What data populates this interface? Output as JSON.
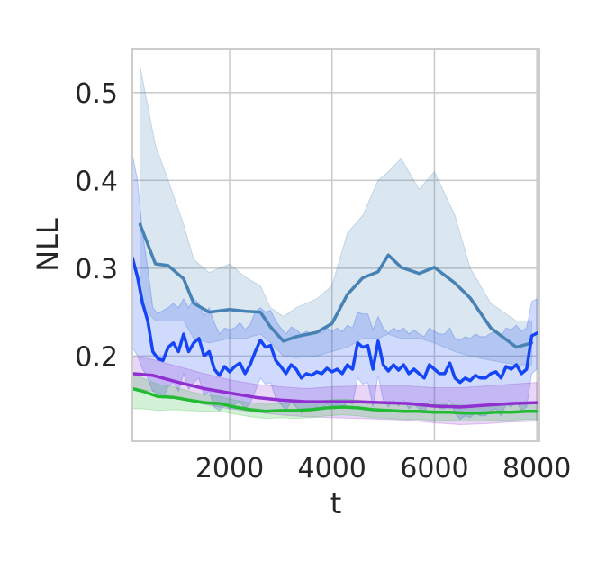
{
  "chart_data": {
    "type": "line",
    "title": "",
    "xlabel": "t",
    "ylabel": "NLL",
    "xlim": [
      100,
      8050
    ],
    "ylim": [
      0.103,
      0.55
    ],
    "xticks": [
      2000,
      4000,
      6000,
      8000
    ],
    "xtick_labels": [
      "2000",
      "4000",
      "6000",
      "8000"
    ],
    "yticks": [
      0.2,
      0.3,
      0.4,
      0.5
    ],
    "ytick_labels": [
      "0.2",
      "0.3",
      "0.4",
      "0.5"
    ],
    "grid": true,
    "legend": "none",
    "series": [
      {
        "color": "#4682b4",
        "x": [
          250,
          550,
          800,
          1100,
          1300,
          1600,
          2000,
          2300,
          2600,
          2800,
          3050,
          3300,
          3700,
          4000,
          4300,
          4600,
          4900,
          5100,
          5350,
          5700,
          6000,
          6400,
          6700,
          7100,
          7600,
          7900
        ],
        "y": [
          0.35,
          0.305,
          0.303,
          0.288,
          0.26,
          0.25,
          0.253,
          0.251,
          0.25,
          0.233,
          0.217,
          0.222,
          0.227,
          0.237,
          0.27,
          0.289,
          0.296,
          0.315,
          0.301,
          0.294,
          0.301,
          0.283,
          0.266,
          0.232,
          0.21,
          0.215
        ],
        "upper": [
          0.53,
          0.44,
          0.4,
          0.35,
          0.31,
          0.295,
          0.305,
          0.29,
          0.28,
          0.255,
          0.245,
          0.255,
          0.265,
          0.28,
          0.34,
          0.36,
          0.4,
          0.41,
          0.425,
          0.39,
          0.41,
          0.36,
          0.3,
          0.26,
          0.24,
          0.24
        ],
        "lower": [
          0.26,
          0.24,
          0.24,
          0.24,
          0.22,
          0.215,
          0.22,
          0.22,
          0.225,
          0.215,
          0.2,
          0.198,
          0.2,
          0.205,
          0.21,
          0.22,
          0.22,
          0.225,
          0.22,
          0.22,
          0.215,
          0.205,
          0.2,
          0.195,
          0.19,
          0.19
        ]
      },
      {
        "color": "#1546f6",
        "x": [
          100,
          200,
          300,
          400,
          500,
          600,
          700,
          800,
          900,
          1000,
          1100,
          1200,
          1300,
          1400,
          1500,
          1600,
          1700,
          1800,
          1900,
          2000,
          2100,
          2200,
          2300,
          2400,
          2500,
          2600,
          2700,
          2800,
          2900,
          3000,
          3100,
          3200,
          3300,
          3400,
          3500,
          3600,
          3700,
          3800,
          3900,
          4000,
          4100,
          4200,
          4300,
          4400,
          4500,
          4600,
          4700,
          4800,
          4900,
          5000,
          5100,
          5200,
          5300,
          5400,
          5500,
          5600,
          5700,
          5800,
          5900,
          6000,
          6100,
          6200,
          6300,
          6400,
          6500,
          6600,
          6700,
          6800,
          6900,
          7000,
          7100,
          7200,
          7300,
          7400,
          7500,
          7600,
          7700,
          7800,
          7900,
          8000
        ],
        "y": [
          0.312,
          0.29,
          0.26,
          0.24,
          0.205,
          0.197,
          0.195,
          0.21,
          0.215,
          0.205,
          0.225,
          0.205,
          0.215,
          0.22,
          0.2,
          0.205,
          0.185,
          0.178,
          0.188,
          0.182,
          0.188,
          0.192,
          0.18,
          0.19,
          0.205,
          0.218,
          0.21,
          0.212,
          0.195,
          0.188,
          0.18,
          0.19,
          0.185,
          0.175,
          0.18,
          0.178,
          0.182,
          0.18,
          0.186,
          0.182,
          0.185,
          0.18,
          0.19,
          0.185,
          0.215,
          0.21,
          0.212,
          0.185,
          0.217,
          0.19,
          0.183,
          0.19,
          0.184,
          0.19,
          0.18,
          0.185,
          0.18,
          0.175,
          0.19,
          0.185,
          0.18,
          0.18,
          0.192,
          0.175,
          0.17,
          0.175,
          0.172,
          0.178,
          0.175,
          0.175,
          0.18,
          0.182,
          0.175,
          0.188,
          0.185,
          0.19,
          0.18,
          0.185,
          0.223,
          0.226
        ],
        "upper": [
          0.43,
          0.4,
          0.34,
          0.3,
          0.255,
          0.248,
          0.252,
          0.255,
          0.26,
          0.255,
          0.265,
          0.255,
          0.265,
          0.26,
          0.245,
          0.255,
          0.238,
          0.225,
          0.232,
          0.23,
          0.232,
          0.238,
          0.23,
          0.236,
          0.25,
          0.255,
          0.25,
          0.252,
          0.24,
          0.232,
          0.225,
          0.233,
          0.23,
          0.225,
          0.228,
          0.225,
          0.228,
          0.226,
          0.232,
          0.228,
          0.232,
          0.228,
          0.235,
          0.232,
          0.25,
          0.248,
          0.248,
          0.23,
          0.245,
          0.232,
          0.226,
          0.232,
          0.228,
          0.232,
          0.225,
          0.23,
          0.225,
          0.222,
          0.232,
          0.228,
          0.225,
          0.225,
          0.232,
          0.22,
          0.218,
          0.222,
          0.22,
          0.225,
          0.222,
          0.222,
          0.226,
          0.228,
          0.222,
          0.232,
          0.23,
          0.235,
          0.228,
          0.232,
          0.262,
          0.265
        ],
        "lower": [
          0.21,
          0.2,
          0.185,
          0.175,
          0.16,
          0.155,
          0.152,
          0.165,
          0.17,
          0.16,
          0.18,
          0.162,
          0.17,
          0.175,
          0.155,
          0.16,
          0.142,
          0.138,
          0.145,
          0.14,
          0.145,
          0.148,
          0.14,
          0.146,
          0.16,
          0.175,
          0.168,
          0.17,
          0.152,
          0.145,
          0.138,
          0.148,
          0.142,
          0.135,
          0.14,
          0.138,
          0.142,
          0.14,
          0.145,
          0.142,
          0.145,
          0.14,
          0.148,
          0.145,
          0.175,
          0.168,
          0.17,
          0.142,
          0.178,
          0.15,
          0.142,
          0.15,
          0.143,
          0.15,
          0.14,
          0.145,
          0.14,
          0.135,
          0.15,
          0.145,
          0.14,
          0.14,
          0.15,
          0.135,
          0.128,
          0.132,
          0.13,
          0.135,
          0.132,
          0.132,
          0.138,
          0.14,
          0.132,
          0.145,
          0.142,
          0.148,
          0.138,
          0.142,
          0.18,
          0.185
        ]
      },
      {
        "color": "#9030d0",
        "x": [
          100,
          500,
          1000,
          1500,
          2000,
          2500,
          3000,
          3500,
          4000,
          4500,
          5000,
          5500,
          6000,
          6500,
          7000,
          7500,
          8000
        ],
        "y": [
          0.18,
          0.178,
          0.17,
          0.163,
          0.158,
          0.153,
          0.15,
          0.148,
          0.148,
          0.148,
          0.147,
          0.146,
          0.143,
          0.142,
          0.144,
          0.146,
          0.147
        ],
        "upper": [
          0.2,
          0.196,
          0.188,
          0.18,
          0.173,
          0.168,
          0.165,
          0.163,
          0.165,
          0.166,
          0.166,
          0.166,
          0.164,
          0.164,
          0.166,
          0.168,
          0.17
        ],
        "lower": [
          0.163,
          0.16,
          0.152,
          0.145,
          0.14,
          0.136,
          0.133,
          0.131,
          0.13,
          0.129,
          0.128,
          0.127,
          0.124,
          0.122,
          0.123,
          0.125,
          0.126
        ]
      },
      {
        "color": "#22bb33",
        "x": [
          100,
          300,
          600,
          900,
          1200,
          1500,
          1800,
          2100,
          2400,
          2700,
          3000,
          3300,
          3600,
          3900,
          4200,
          4500,
          4800,
          5100,
          5400,
          5700,
          6000,
          6300,
          6600,
          6900,
          7200,
          7500,
          7800,
          8000
        ],
        "y": [
          0.163,
          0.16,
          0.154,
          0.153,
          0.15,
          0.147,
          0.146,
          0.142,
          0.139,
          0.137,
          0.138,
          0.138,
          0.139,
          0.141,
          0.142,
          0.141,
          0.139,
          0.138,
          0.137,
          0.137,
          0.136,
          0.136,
          0.135,
          0.135,
          0.136,
          0.136,
          0.137,
          0.137
        ],
        "upper": [
          0.18,
          0.175,
          0.168,
          0.165,
          0.16,
          0.156,
          0.154,
          0.15,
          0.147,
          0.145,
          0.146,
          0.147,
          0.148,
          0.15,
          0.151,
          0.15,
          0.148,
          0.147,
          0.146,
          0.146,
          0.145,
          0.145,
          0.144,
          0.144,
          0.145,
          0.145,
          0.146,
          0.146
        ],
        "lower": [
          0.14,
          0.14,
          0.138,
          0.139,
          0.138,
          0.137,
          0.137,
          0.134,
          0.131,
          0.129,
          0.13,
          0.129,
          0.13,
          0.132,
          0.133,
          0.132,
          0.13,
          0.129,
          0.128,
          0.128,
          0.127,
          0.127,
          0.126,
          0.126,
          0.127,
          0.127,
          0.128,
          0.128
        ]
      }
    ]
  }
}
